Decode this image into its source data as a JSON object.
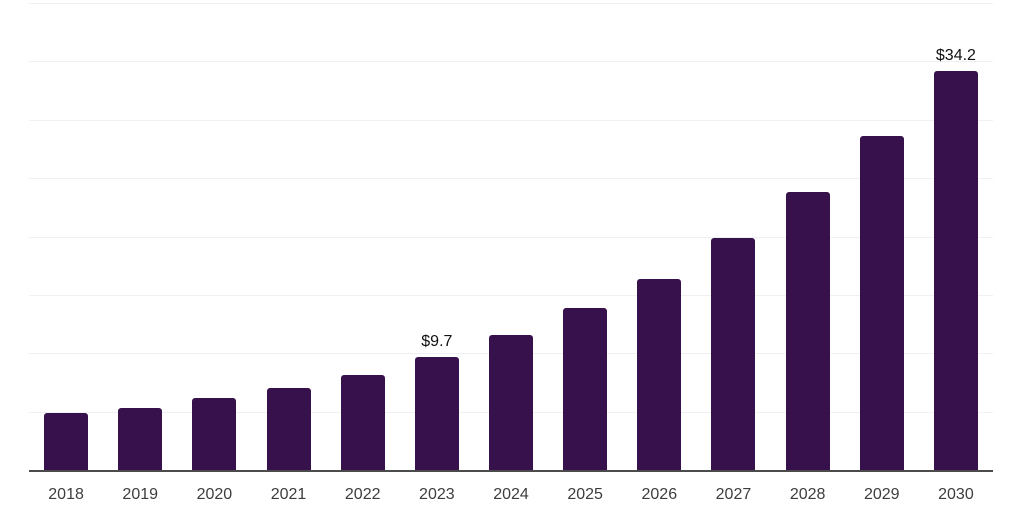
{
  "chart_data": {
    "type": "bar",
    "title": "",
    "xlabel": "",
    "ylabel": "",
    "categories": [
      "2018",
      "2019",
      "2020",
      "2021",
      "2022",
      "2023",
      "2024",
      "2025",
      "2026",
      "2027",
      "2028",
      "2029",
      "2030"
    ],
    "values": [
      4.9,
      5.3,
      6.2,
      7.0,
      8.1,
      9.7,
      11.6,
      13.9,
      16.4,
      19.9,
      23.8,
      28.6,
      34.2
    ],
    "data_labels": {
      "2023": "$9.7",
      "2030": "$34.2"
    },
    "ylim": [
      0,
      40
    ],
    "grid_step": 5,
    "grid": "on",
    "legend": "none",
    "colors": {
      "bar": "#36114B",
      "gridline": "#F0F0F2",
      "axis_line": "#4B4B4B",
      "tick_label": "#3D3D3D",
      "value_label": "#111111",
      "background": "#FFFFFF"
    }
  }
}
